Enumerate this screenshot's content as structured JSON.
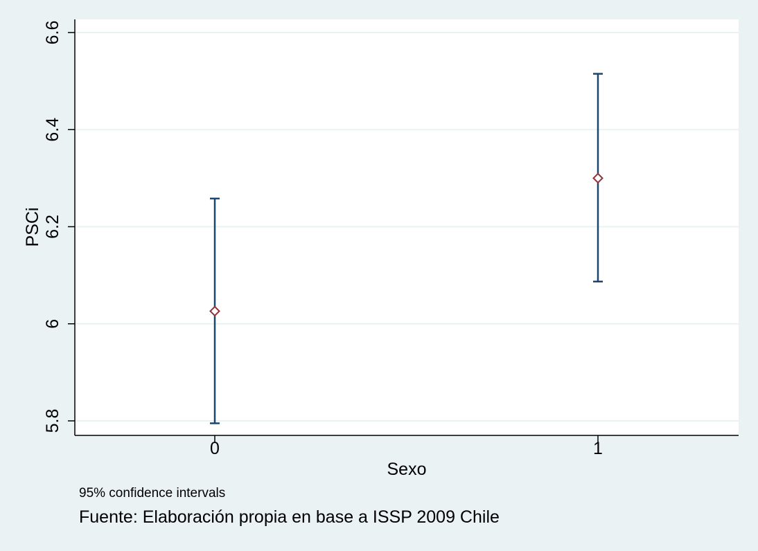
{
  "chart_data": {
    "type": "scatter",
    "xlabel": "Sexo",
    "ylabel": "PSCi",
    "categories": [
      "0",
      "1"
    ],
    "x": [
      0,
      1
    ],
    "ylim": [
      5.8,
      6.6
    ],
    "yticks": [
      5.8,
      6.0,
      6.2,
      6.4,
      6.6
    ],
    "ytick_labels": [
      "5.8",
      "6",
      "6.2",
      "6.4",
      "6.6"
    ],
    "series": [
      {
        "estimate": [
          6.026,
          6.3
        ],
        "ci_lower": [
          5.795,
          6.087
        ],
        "ci_upper": [
          6.258,
          6.515
        ]
      }
    ],
    "grid": true,
    "notes": [
      "95% confidence intervals",
      "Fuente: Elaboración propia en base a ISSP 2009 Chile"
    ]
  },
  "colors": {
    "background": "#eaf2f3",
    "plot_background": "#ffffff",
    "gridline": "#eaf2f3",
    "interval": "#1a476f",
    "marker": "#90353b"
  }
}
